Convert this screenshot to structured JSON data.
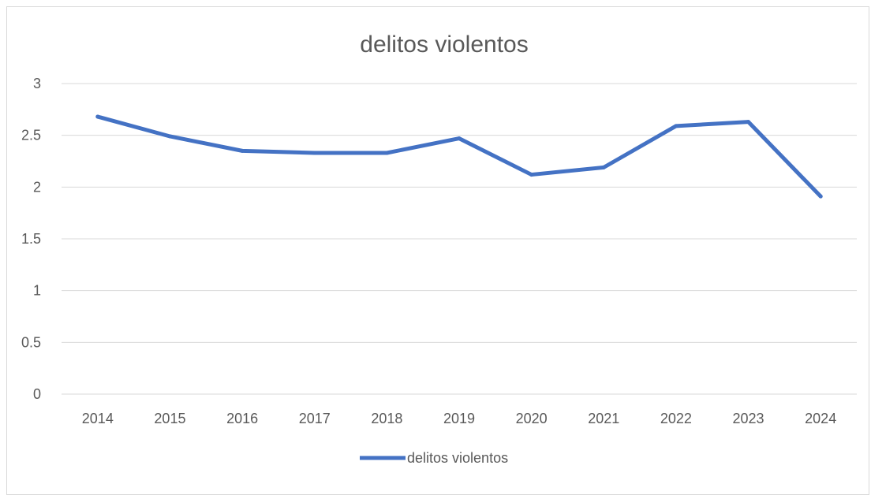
{
  "chart_data": {
    "type": "line",
    "title": "delitos violentos",
    "xlabel": "",
    "ylabel": "",
    "categories": [
      "2014",
      "2015",
      "2016",
      "2017",
      "2018",
      "2019",
      "2020",
      "2021",
      "2022",
      "2023",
      "2024"
    ],
    "series": [
      {
        "name": "delitos violentos",
        "color": "#4472c4",
        "values": [
          2.68,
          2.49,
          2.35,
          2.33,
          2.33,
          2.47,
          2.12,
          2.19,
          2.59,
          2.63,
          1.91
        ]
      }
    ],
    "ylim": [
      0,
      3
    ],
    "yticks": [
      "0",
      "0.5",
      "1",
      "1.5",
      "2",
      "2.5",
      "3"
    ],
    "grid": true,
    "legend_position": "bottom"
  }
}
